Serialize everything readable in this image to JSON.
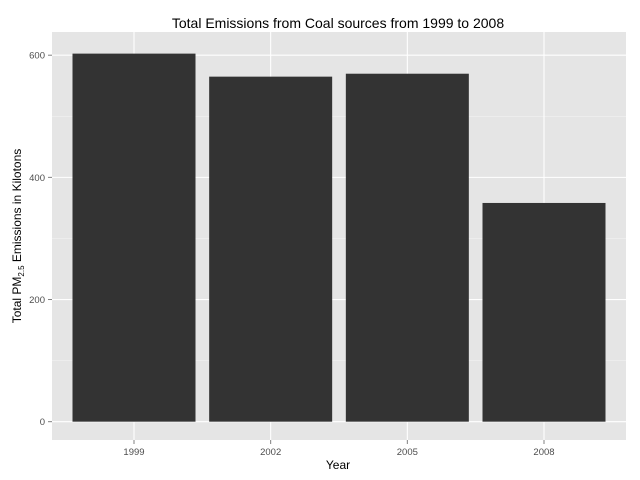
{
  "chart_data": {
    "type": "bar",
    "title": "Total Emissions from Coal sources from 1999 to 2008",
    "xlabel": "Year",
    "ylabel": {
      "prefix": "Total PM",
      "subscript": "2.5",
      "suffix": " Emissions in Kilotons"
    },
    "categories": [
      "1999",
      "2002",
      "2005",
      "2008"
    ],
    "values": [
      602.6,
      564.9,
      569.7,
      358.1
    ],
    "ylim": [
      -30,
      638
    ],
    "yticks": [
      0,
      200,
      400,
      600
    ],
    "grid": true,
    "legend": "none",
    "colors": {
      "panel": "#e5e5e5",
      "grid_major": "#ffffff",
      "grid_minor": "#f2f2f2",
      "bar": "#333333",
      "tick": "#808080"
    }
  }
}
